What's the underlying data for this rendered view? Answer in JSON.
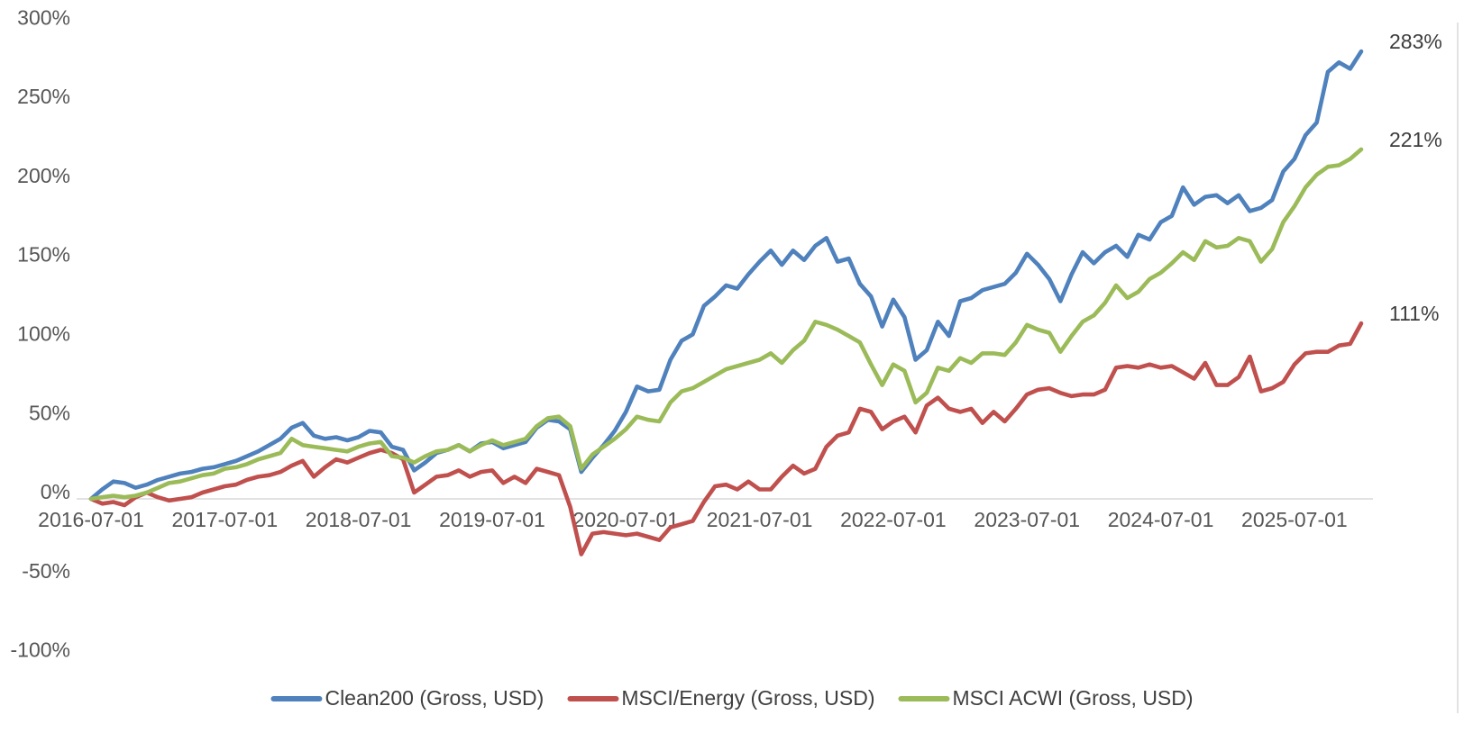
{
  "chart_data": {
    "type": "line",
    "title": "",
    "xlabel": "",
    "ylabel": "",
    "unit": "%",
    "grid": "zero-line-only",
    "legend_position": "bottom",
    "axis_color": "#d9d9d9",
    "y_ticks": [
      {
        "value": 300,
        "label": "300%"
      },
      {
        "value": 250,
        "label": "250%"
      },
      {
        "value": 200,
        "label": "200%"
      },
      {
        "value": 150,
        "label": "150%"
      },
      {
        "value": 100,
        "label": "100%"
      },
      {
        "value": 50,
        "label": "50%"
      },
      {
        "value": 0,
        "label": "0%"
      },
      {
        "value": -50,
        "label": "-50%"
      },
      {
        "value": -100,
        "label": "-100%"
      }
    ],
    "x_ticks": [
      {
        "month_index": 0,
        "label": "2016-07-01"
      },
      {
        "month_index": 12,
        "label": "2017-07-01"
      },
      {
        "month_index": 24,
        "label": "2018-07-01"
      },
      {
        "month_index": 36,
        "label": "2019-07-01"
      },
      {
        "month_index": 48,
        "label": "2020-07-01"
      },
      {
        "month_index": 60,
        "label": "2021-07-01"
      },
      {
        "month_index": 72,
        "label": "2022-07-01"
      },
      {
        "month_index": 84,
        "label": "2023-07-01"
      },
      {
        "month_index": 96,
        "label": "2024-07-01"
      },
      {
        "month_index": 108,
        "label": "2025-07-01"
      }
    ],
    "x_months": [
      "2016-07",
      "2016-08",
      "2016-09",
      "2016-10",
      "2016-11",
      "2016-12",
      "2017-01",
      "2017-02",
      "2017-03",
      "2017-04",
      "2017-05",
      "2017-06",
      "2017-07",
      "2017-08",
      "2017-09",
      "2017-10",
      "2017-11",
      "2017-12",
      "2018-01",
      "2018-02",
      "2018-03",
      "2018-04",
      "2018-05",
      "2018-06",
      "2018-07",
      "2018-08",
      "2018-09",
      "2018-10",
      "2018-11",
      "2018-12",
      "2019-01",
      "2019-02",
      "2019-03",
      "2019-04",
      "2019-05",
      "2019-06",
      "2019-07",
      "2019-08",
      "2019-09",
      "2019-10",
      "2019-11",
      "2019-12",
      "2020-01",
      "2020-02",
      "2020-03",
      "2020-04",
      "2020-05",
      "2020-06",
      "2020-07",
      "2020-08",
      "2020-09",
      "2020-10",
      "2020-11",
      "2020-12",
      "2021-01",
      "2021-02",
      "2021-03",
      "2021-04",
      "2021-05",
      "2021-06",
      "2021-07",
      "2021-08",
      "2021-09",
      "2021-10",
      "2021-11",
      "2021-12",
      "2022-01",
      "2022-02",
      "2022-03",
      "2022-04",
      "2022-05",
      "2022-06",
      "2022-07",
      "2022-08",
      "2022-09",
      "2022-10",
      "2022-11",
      "2022-12",
      "2023-01",
      "2023-02",
      "2023-03",
      "2023-04",
      "2023-05",
      "2023-06",
      "2023-07",
      "2023-08",
      "2023-09",
      "2023-10",
      "2023-11",
      "2023-12",
      "2024-01",
      "2024-02",
      "2024-03",
      "2024-04",
      "2024-05",
      "2024-06",
      "2024-07",
      "2024-08",
      "2024-09",
      "2024-10",
      "2024-11",
      "2024-12",
      "2025-01",
      "2025-02",
      "2025-03",
      "2025-04",
      "2025-05",
      "2025-06",
      "2025-07",
      "2025-08",
      "2025-09",
      "2025-10",
      "2025-11",
      "2025-12",
      "2026-01"
    ],
    "series": [
      {
        "name": "Clean200 (Gross, USD)",
        "color": "#4F81BD",
        "end_label": "283%",
        "values": [
          0,
          6,
          11,
          10,
          7,
          9,
          12,
          14,
          16,
          17,
          19,
          20,
          22,
          24,
          27,
          30,
          34,
          38,
          45,
          48,
          40,
          38,
          39,
          37,
          39,
          43,
          42,
          33,
          31,
          18,
          23,
          29,
          31,
          34,
          30,
          35,
          36,
          32,
          34,
          36,
          45,
          50,
          49,
          44,
          17,
          26,
          34,
          43,
          55,
          71,
          68,
          69,
          88,
          100,
          104,
          122,
          128,
          135,
          133,
          142,
          150,
          157,
          148,
          157,
          151,
          160,
          165,
          150,
          152,
          136,
          128,
          109,
          126,
          115,
          88,
          94,
          112,
          103,
          125,
          127,
          132,
          134,
          136,
          143,
          155,
          148,
          139,
          125,
          142,
          156,
          149,
          156,
          160,
          153,
          167,
          164,
          175,
          179,
          197,
          186,
          191,
          192,
          187,
          192,
          182,
          184,
          189,
          207,
          215,
          230,
          238,
          270,
          276,
          272,
          283
        ]
      },
      {
        "name": "MSCI/Energy (Gross, USD)",
        "color": "#C0504D",
        "end_label": "111%",
        "values": [
          0,
          -3,
          -2,
          -4,
          1,
          4,
          1,
          -1,
          0,
          1,
          4,
          6,
          8,
          9,
          12,
          14,
          15,
          17,
          21,
          24,
          14,
          20,
          25,
          23,
          26,
          29,
          31,
          29,
          25,
          4,
          9,
          14,
          15,
          18,
          14,
          17,
          18,
          10,
          14,
          10,
          19,
          17,
          15,
          -5,
          -35,
          -22,
          -21,
          -22,
          -23,
          -22,
          -24,
          -26,
          -18,
          -16,
          -14,
          -2,
          8,
          9,
          6,
          11,
          6,
          6,
          14,
          21,
          16,
          19,
          33,
          40,
          42,
          57,
          55,
          44,
          49,
          52,
          42,
          59,
          64,
          57,
          55,
          57,
          48,
          55,
          49,
          57,
          66,
          69,
          70,
          67,
          65,
          66,
          66,
          69,
          83,
          84,
          83,
          85,
          83,
          84,
          80,
          76,
          86,
          72,
          72,
          77,
          90,
          68,
          70,
          74,
          85,
          92,
          93,
          93,
          97,
          98,
          111
        ]
      },
      {
        "name": "MSCI ACWI (Gross, USD)",
        "color": "#9BBB59",
        "end_label": "221%",
        "values": [
          0,
          1,
          2,
          1,
          2,
          4,
          7,
          10,
          11,
          13,
          15,
          16,
          19,
          20,
          22,
          25,
          27,
          29,
          38,
          34,
          33,
          32,
          31,
          30,
          33,
          35,
          36,
          27,
          26,
          23,
          27,
          30,
          31,
          34,
          30,
          34,
          37,
          34,
          36,
          38,
          46,
          51,
          52,
          46,
          19,
          28,
          33,
          38,
          44,
          52,
          50,
          49,
          61,
          68,
          70,
          74,
          78,
          82,
          84,
          86,
          88,
          92,
          86,
          94,
          100,
          112,
          110,
          107,
          103,
          99,
          85,
          72,
          85,
          81,
          61,
          67,
          83,
          81,
          89,
          86,
          92,
          92,
          91,
          99,
          110,
          107,
          105,
          93,
          103,
          112,
          116,
          124,
          135,
          127,
          131,
          139,
          143,
          149,
          156,
          151,
          163,
          159,
          160,
          165,
          163,
          150,
          158,
          175,
          185,
          197,
          205,
          210,
          211,
          215,
          221
        ]
      }
    ],
    "legend": [
      {
        "series_index": 0,
        "label": "Clean200 (Gross, USD)"
      },
      {
        "series_index": 1,
        "label": "MSCI/Energy (Gross, USD)"
      },
      {
        "series_index": 2,
        "label": "MSCI ACWI (Gross, USD)"
      }
    ]
  }
}
